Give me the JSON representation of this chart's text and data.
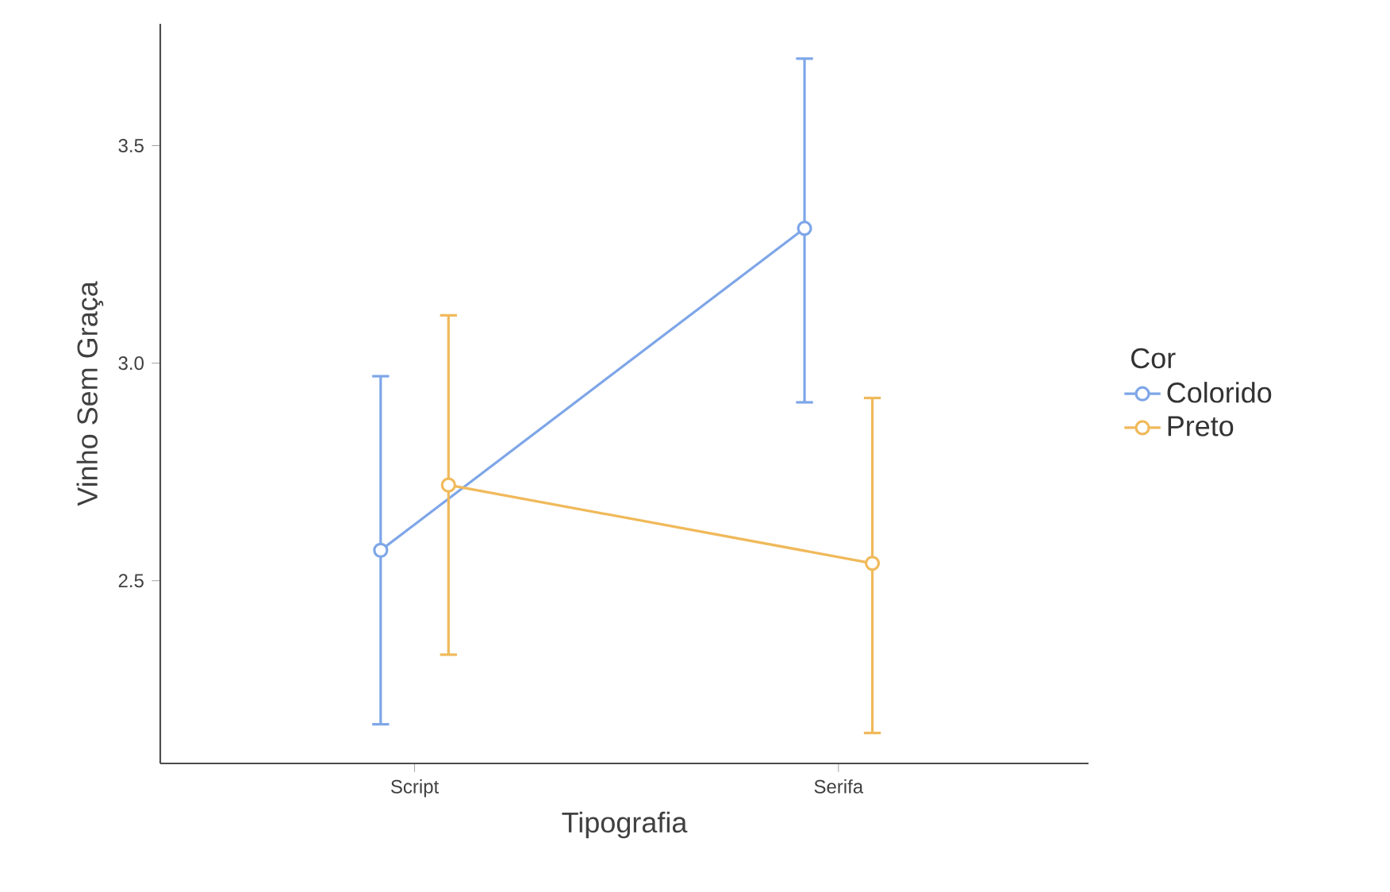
{
  "chart_data": {
    "type": "line",
    "xlabel": "Tipografia",
    "ylabel": "Vinho Sem Graça",
    "legend_title": "Cor",
    "categories": [
      "Script",
      "Serifa"
    ],
    "series": [
      {
        "name": "Colorido",
        "color": "#7ea6e8",
        "values": [
          2.57,
          3.31
        ],
        "errors": [
          [
            2.17,
            2.97
          ],
          [
            2.91,
            3.7
          ]
        ]
      },
      {
        "name": "Preto",
        "color": "#f0b95a",
        "values": [
          2.72,
          2.54
        ],
        "errors": [
          [
            2.33,
            3.11
          ],
          [
            2.15,
            2.92
          ]
        ]
      }
    ],
    "ylim": [
      2.08,
      3.78
    ],
    "yticks": [
      {
        "value": 2.5,
        "label": "2.5"
      },
      {
        "value": 3.0,
        "label": "3.0"
      },
      {
        "value": 3.5,
        "label": "3.5"
      }
    ],
    "grid": false,
    "legend": "right",
    "marker": "circle",
    "line_style": "solid"
  }
}
